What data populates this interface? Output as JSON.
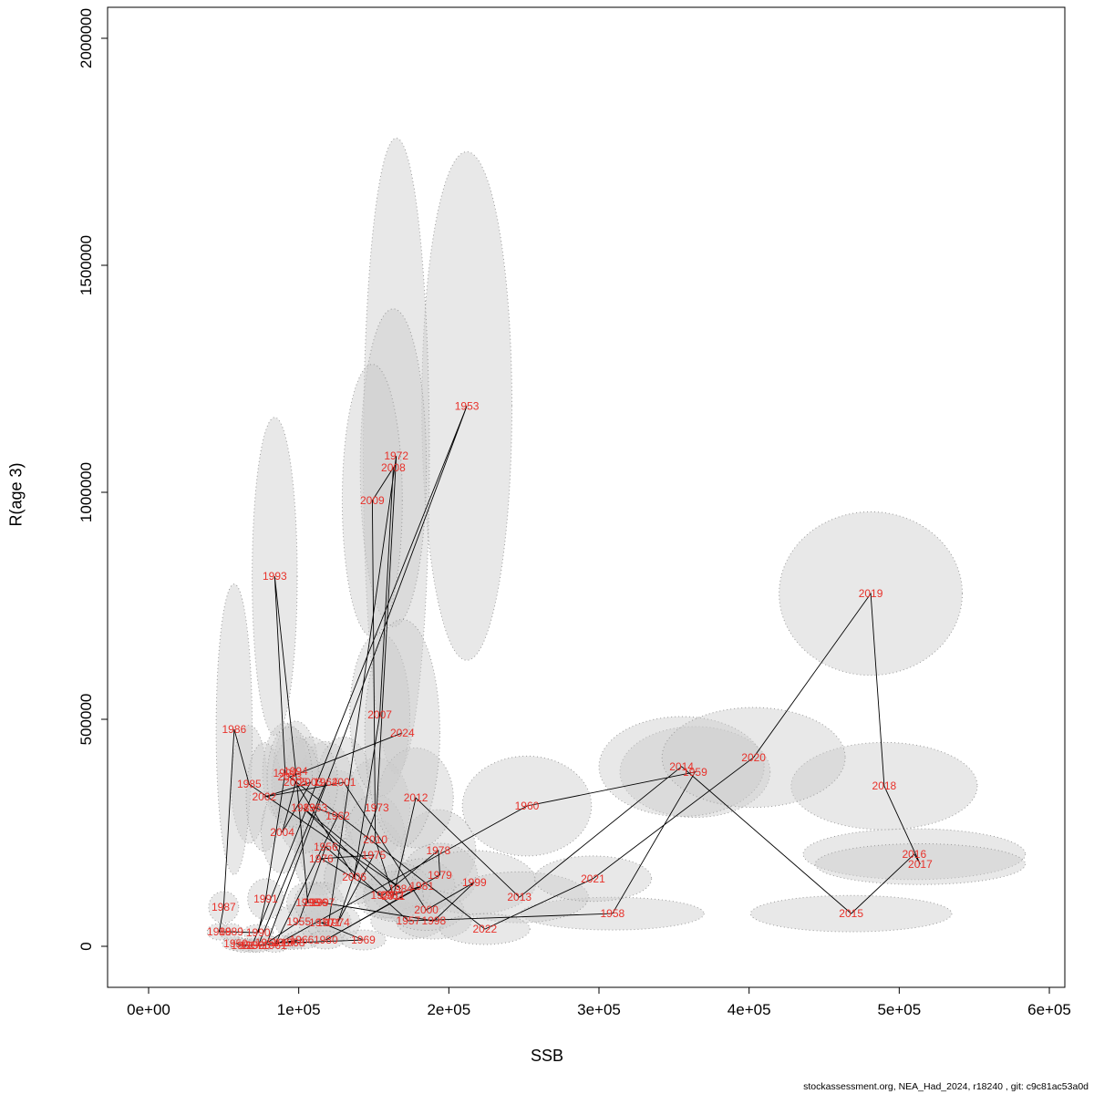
{
  "footer": {
    "text": "stockassessment.org, NEA_Had_2024, r18240 , git: c9c81ac53a0d"
  },
  "chart_data": {
    "type": "scatter",
    "title": "",
    "xlabel": "SSB",
    "ylabel": "R(age 3)",
    "xlim": [
      0,
      600000
    ],
    "ylim": [
      0,
      2000000
    ],
    "grid": false,
    "legend": "none",
    "label_color": "#e8312a",
    "line_color": "#000000",
    "ellipse_fill": "#cccccc",
    "ellipse_stroke": "#9a9a9a",
    "x_ticks": [
      {
        "v": 0,
        "label": "0e+00"
      },
      {
        "v": 100000,
        "label": "1e+05"
      },
      {
        "v": 200000,
        "label": "2e+05"
      },
      {
        "v": 300000,
        "label": "3e+05"
      },
      {
        "v": 400000,
        "label": "4e+05"
      },
      {
        "v": 500000,
        "label": "5e+05"
      },
      {
        "v": 600000,
        "label": "6e+05"
      }
    ],
    "y_ticks": [
      {
        "v": 0,
        "label": "0"
      },
      {
        "v": 500000,
        "label": "500000"
      },
      {
        "v": 1000000,
        "label": "1000000"
      },
      {
        "v": 1500000,
        "label": "1500000"
      },
      {
        "v": 2000000,
        "label": "2000000"
      }
    ],
    "points": [
      {
        "year": 1950,
        "ssb": 58000,
        "r": 6000,
        "rx": 9000,
        "ry": 15000
      },
      {
        "year": 1951,
        "ssb": 63000,
        "r": 2000,
        "rx": 9000,
        "ry": 15000
      },
      {
        "year": 1952,
        "ssb": 69000,
        "r": 2000,
        "rx": 9000,
        "ry": 15000
      },
      {
        "year": 1953,
        "ssb": 212000,
        "r": 1190000,
        "rx": 30000,
        "ry": 560000
      },
      {
        "year": 1954,
        "ssb": 79000,
        "r": 8000,
        "rx": 9000,
        "ry": 15000
      },
      {
        "year": 1955,
        "ssb": 100000,
        "r": 54000,
        "rx": 16000,
        "ry": 40000
      },
      {
        "year": 1956,
        "ssb": 118000,
        "r": 219000,
        "rx": 18000,
        "ry": 90000
      },
      {
        "year": 1957,
        "ssb": 173000,
        "r": 56000,
        "rx": 25000,
        "ry": 40000
      },
      {
        "year": 1958,
        "ssb": 309000,
        "r": 72000,
        "rx": 61000,
        "ry": 36000
      },
      {
        "year": 1959,
        "ssb": 364000,
        "r": 384000,
        "rx": 50000,
        "ry": 100000
      },
      {
        "year": 1960,
        "ssb": 252000,
        "r": 309000,
        "rx": 43000,
        "ry": 110000
      },
      {
        "year": 1961,
        "ssb": 84000,
        "r": 2000,
        "rx": 9000,
        "ry": 15000
      },
      {
        "year": 1962,
        "ssb": 126000,
        "r": 287000,
        "rx": 20000,
        "ry": 100000
      },
      {
        "year": 1963,
        "ssb": 111000,
        "r": 305000,
        "rx": 20000,
        "ry": 100000
      },
      {
        "year": 1964,
        "ssb": 118000,
        "r": 361000,
        "rx": 18000,
        "ry": 90000
      },
      {
        "year": 1965,
        "ssb": 73000,
        "r": 2000,
        "rx": 9000,
        "ry": 15000
      },
      {
        "year": 1966,
        "ssb": 102000,
        "r": 14000,
        "rx": 12000,
        "ry": 20000
      },
      {
        "year": 1967,
        "ssb": 90000,
        "r": 8000,
        "rx": 9000,
        "ry": 15000
      },
      {
        "year": 1968,
        "ssb": 96000,
        "r": 8000,
        "rx": 9000,
        "ry": 15000
      },
      {
        "year": 1969,
        "ssb": 143000,
        "r": 14000,
        "rx": 15000,
        "ry": 22000
      },
      {
        "year": 1970,
        "ssb": 115000,
        "r": 52000,
        "rx": 15000,
        "ry": 40000
      },
      {
        "year": 1971,
        "ssb": 120000,
        "r": 52000,
        "rx": 15000,
        "ry": 40000
      },
      {
        "year": 1972,
        "ssb": 165000,
        "r": 1080000,
        "rx": 22000,
        "ry": 700000
      },
      {
        "year": 1973,
        "ssb": 152000,
        "r": 305000,
        "rx": 22000,
        "ry": 110000
      },
      {
        "year": 1974,
        "ssb": 126000,
        "r": 52000,
        "rx": 15000,
        "ry": 40000
      },
      {
        "year": 1975,
        "ssb": 150000,
        "r": 201000,
        "rx": 20000,
        "ry": 80000
      },
      {
        "year": 1976,
        "ssb": 115000,
        "r": 193000,
        "rx": 18000,
        "ry": 80000
      },
      {
        "year": 1977,
        "ssb": 156000,
        "r": 112000,
        "rx": 18000,
        "ry": 50000
      },
      {
        "year": 1978,
        "ssb": 193000,
        "r": 211000,
        "rx": 25000,
        "ry": 90000
      },
      {
        "year": 1979,
        "ssb": 194000,
        "r": 157000,
        "rx": 25000,
        "ry": 70000
      },
      {
        "year": 1980,
        "ssb": 118000,
        "r": 14000,
        "rx": 12000,
        "ry": 20000
      },
      {
        "year": 1981,
        "ssb": 182000,
        "r": 133000,
        "rx": 22000,
        "ry": 60000
      },
      {
        "year": 1982,
        "ssb": 162000,
        "r": 112000,
        "rx": 18000,
        "ry": 50000
      },
      {
        "year": 1983,
        "ssb": 103000,
        "r": 305000,
        "rx": 18000,
        "ry": 100000
      },
      {
        "year": 1984,
        "ssb": 168000,
        "r": 127000,
        "rx": 20000,
        "ry": 55000
      },
      {
        "year": 1985,
        "ssb": 67000,
        "r": 357000,
        "rx": 12000,
        "ry": 130000
      },
      {
        "year": 1986,
        "ssb": 57000,
        "r": 478000,
        "rx": 12000,
        "ry": 320000
      },
      {
        "year": 1987,
        "ssb": 50000,
        "r": 86000,
        "rx": 10000,
        "ry": 35000
      },
      {
        "year": 1988,
        "ssb": 47000,
        "r": 32000,
        "rx": 8000,
        "ry": 18000
      },
      {
        "year": 1989,
        "ssb": 55000,
        "r": 32000,
        "rx": 8000,
        "ry": 18000
      },
      {
        "year": 1990,
        "ssb": 73000,
        "r": 30000,
        "rx": 10000,
        "ry": 18000
      },
      {
        "year": 1991,
        "ssb": 78000,
        "r": 104000,
        "rx": 12000,
        "ry": 45000
      },
      {
        "year": 1992,
        "ssb": 91000,
        "r": 382000,
        "rx": 15000,
        "ry": 110000
      },
      {
        "year": 1993,
        "ssb": 84000,
        "r": 815000,
        "rx": 15000,
        "ry": 350000
      },
      {
        "year": 1994,
        "ssb": 98000,
        "r": 386000,
        "rx": 15000,
        "ry": 110000
      },
      {
        "year": 1995,
        "ssb": 106000,
        "r": 96000,
        "rx": 14000,
        "ry": 45000
      },
      {
        "year": 1996,
        "ssb": 111000,
        "r": 96000,
        "rx": 14000,
        "ry": 45000
      },
      {
        "year": 1997,
        "ssb": 116000,
        "r": 96000,
        "rx": 14000,
        "ry": 45000
      },
      {
        "year": 1998,
        "ssb": 190000,
        "r": 56000,
        "rx": 25000,
        "ry": 40000
      },
      {
        "year": 1999,
        "ssb": 217000,
        "r": 141000,
        "rx": 41000,
        "ry": 70000
      },
      {
        "year": 2000,
        "ssb": 185000,
        "r": 80000,
        "rx": 25000,
        "ry": 45000
      },
      {
        "year": 2001,
        "ssb": 130000,
        "r": 361000,
        "rx": 18000,
        "ry": 100000
      },
      {
        "year": 2002,
        "ssb": 77000,
        "r": 329000,
        "rx": 12000,
        "ry": 120000
      },
      {
        "year": 2003,
        "ssb": 108000,
        "r": 361000,
        "rx": 18000,
        "ry": 100000
      },
      {
        "year": 2004,
        "ssb": 89000,
        "r": 251000,
        "rx": 14000,
        "ry": 90000
      },
      {
        "year": 2005,
        "ssb": 98000,
        "r": 361000,
        "rx": 16000,
        "ry": 100000
      },
      {
        "year": 2006,
        "ssb": 137000,
        "r": 153000,
        "rx": 20000,
        "ry": 60000
      },
      {
        "year": 2007,
        "ssb": 154000,
        "r": 510000,
        "rx": 20000,
        "ry": 180000
      },
      {
        "year": 2008,
        "ssb": 163000,
        "r": 1054000,
        "rx": 22000,
        "ry": 350000
      },
      {
        "year": 2009,
        "ssb": 149000,
        "r": 982000,
        "rx": 20000,
        "ry": 300000
      },
      {
        "year": 2010,
        "ssb": 151000,
        "r": 235000,
        "rx": 20000,
        "ry": 100000
      },
      {
        "year": 2011,
        "ssb": 163000,
        "r": 110000,
        "rx": 20000,
        "ry": 55000
      },
      {
        "year": 2012,
        "ssb": 178000,
        "r": 327000,
        "rx": 25000,
        "ry": 110000
      },
      {
        "year": 2013,
        "ssb": 247000,
        "r": 108000,
        "rx": 46000,
        "ry": 56000
      },
      {
        "year": 2014,
        "ssb": 355000,
        "r": 396000,
        "rx": 55000,
        "ry": 110000
      },
      {
        "year": 2015,
        "ssb": 468000,
        "r": 72000,
        "rx": 67000,
        "ry": 40000
      },
      {
        "year": 2016,
        "ssb": 510000,
        "r": 203000,
        "rx": 74000,
        "ry": 56000
      },
      {
        "year": 2017,
        "ssb": 514000,
        "r": 181000,
        "rx": 70000,
        "ry": 45000
      },
      {
        "year": 2018,
        "ssb": 490000,
        "r": 353000,
        "rx": 62000,
        "ry": 96000
      },
      {
        "year": 2019,
        "ssb": 481000,
        "r": 777000,
        "rx": 61000,
        "ry": 180000
      },
      {
        "year": 2020,
        "ssb": 403000,
        "r": 416000,
        "rx": 61000,
        "ry": 110000
      },
      {
        "year": 2021,
        "ssb": 296000,
        "r": 149000,
        "rx": 39000,
        "ry": 50000
      },
      {
        "year": 2022,
        "ssb": 224000,
        "r": 38000,
        "rx": 30000,
        "ry": 34000
      },
      {
        "year": 2023,
        "ssb": 94000,
        "r": 373000,
        "rx": 15000,
        "ry": 110000
      },
      {
        "year": 2024,
        "ssb": 169000,
        "r": 470000,
        "rx": 25000,
        "ry": 250000
      }
    ]
  }
}
